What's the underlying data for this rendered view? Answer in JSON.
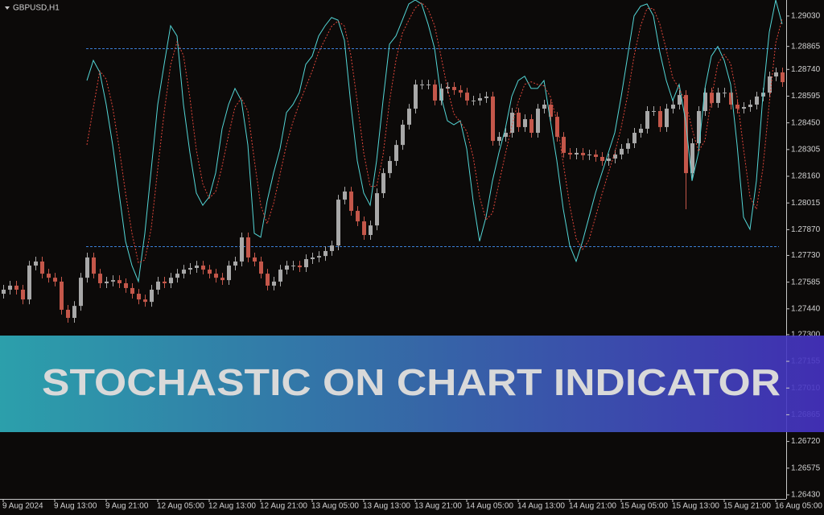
{
  "chart_data": {
    "type": "candlestick",
    "title": "GBPUSD,H1",
    "categories": [
      "9 Aug 2024",
      null,
      null,
      null,
      null,
      null,
      null,
      null,
      "9 Aug 13:00",
      null,
      null,
      null,
      null,
      null,
      null,
      null,
      "9 Aug 21:00",
      null,
      null,
      null,
      null,
      null,
      null,
      null,
      "12 Aug 05:00",
      null,
      null,
      null,
      null,
      null,
      null,
      null,
      "12 Aug 13:00",
      null,
      null,
      null,
      null,
      null,
      null,
      null,
      "12 Aug 21:00",
      null,
      null,
      null,
      null,
      null,
      null,
      null,
      "13 Aug 05:00",
      null,
      null,
      null,
      null,
      null,
      null,
      null,
      "13 Aug 13:00",
      null,
      null,
      null,
      null,
      null,
      null,
      null,
      "13 Aug 21:00",
      null,
      null,
      null,
      null,
      null,
      null,
      null,
      "14 Aug 05:00",
      null,
      null,
      null,
      null,
      null,
      null,
      null,
      "14 Aug 13:00",
      null,
      null,
      null,
      null,
      null,
      null,
      null,
      "14 Aug 21:00",
      null,
      null,
      null,
      null,
      null,
      null,
      null,
      "15 Aug 05:00",
      null,
      null,
      null,
      null,
      null,
      null,
      null,
      "15 Aug 13:00",
      null,
      null,
      null,
      null,
      null,
      null,
      null,
      "15 Aug 21:00",
      null,
      null,
      null,
      null,
      null,
      null,
      null,
      "16 Aug 05:00",
      null
    ],
    "open": [
      1.27522,
      1.27544,
      1.27566,
      1.27544,
      1.27491,
      1.27675,
      1.27697,
      1.27631,
      1.27609,
      1.27588,
      1.27435,
      1.27391,
      1.27456,
      1.27609,
      1.27719,
      1.27631,
      1.27579,
      1.27588,
      1.27596,
      1.27579,
      1.27553,
      1.27522,
      1.27491,
      1.27478,
      1.27544,
      1.27588,
      1.27579,
      1.27609,
      1.27631,
      1.27653,
      1.27662,
      1.27675,
      1.27653,
      1.27631,
      1.27609,
      1.27596,
      1.27675,
      1.27697,
      1.27828,
      1.27719,
      1.27697,
      1.27631,
      1.27566,
      1.27588,
      1.27653,
      1.27675,
      1.27675,
      1.27666,
      1.2771,
      1.27719,
      1.27727,
      1.27754,
      1.27784,
      1.28033,
      1.28077,
      1.27972,
      1.27915,
      1.27841,
      1.27893,
      1.28068,
      1.28177,
      1.28243,
      1.2833,
      1.2844,
      1.28527,
      1.28658,
      1.28658,
      1.28658,
      1.28571,
      1.28636,
      1.28645,
      1.28628,
      1.28614,
      1.28571,
      1.28571,
      1.28584,
      1.28593,
      1.28352,
      1.28374,
      1.28396,
      1.28505,
      1.28427,
      1.2847,
      1.28396,
      1.28527,
      1.28549,
      1.28483,
      1.28374,
      1.28287,
      1.28278,
      1.28287,
      1.28274,
      1.28278,
      1.28265,
      1.28243,
      1.28256,
      1.28278,
      1.28309,
      1.28339,
      1.28396,
      1.28418,
      1.28514,
      1.28514,
      1.28427,
      1.28527,
      1.28549,
      1.28601,
      1.28177,
      1.28339,
      1.28514,
      1.28614,
      1.28558,
      1.28614,
      1.28614,
      1.28549,
      1.28527,
      1.28536,
      1.28549,
      1.28593,
      1.28614,
      1.28702,
      1.28724
    ],
    "high": [
      1.2757,
      1.27592,
      1.27592,
      1.2757,
      1.27701,
      1.27723,
      1.27723,
      1.27657,
      1.27635,
      1.27614,
      1.27461,
      1.27482,
      1.27635,
      1.27745,
      1.27745,
      1.27657,
      1.27614,
      1.27622,
      1.27622,
      1.27605,
      1.27579,
      1.27548,
      1.27517,
      1.2757,
      1.27614,
      1.27614,
      1.27635,
      1.27657,
      1.27679,
      1.27688,
      1.27701,
      1.27701,
      1.27679,
      1.27657,
      1.27635,
      1.27701,
      1.27723,
      1.27854,
      1.27854,
      1.27745,
      1.27723,
      1.27657,
      1.27614,
      1.27679,
      1.27701,
      1.27701,
      1.27701,
      1.27736,
      1.27745,
      1.27753,
      1.2778,
      1.2781,
      1.28059,
      1.28103,
      1.28103,
      1.27998,
      1.27941,
      1.27919,
      1.28094,
      1.28203,
      1.28269,
      1.28356,
      1.28466,
      1.28553,
      1.28684,
      1.28684,
      1.28684,
      1.28684,
      1.28662,
      1.28671,
      1.28671,
      1.28654,
      1.2864,
      1.28597,
      1.2861,
      1.28619,
      1.28619,
      1.284,
      1.28422,
      1.28531,
      1.28531,
      1.28496,
      1.28496,
      1.28553,
      1.28575,
      1.28575,
      1.28509,
      1.284,
      1.28313,
      1.28313,
      1.28313,
      1.28304,
      1.28304,
      1.28291,
      1.28282,
      1.28304,
      1.28335,
      1.28365,
      1.28422,
      1.28444,
      1.2854,
      1.2854,
      1.2854,
      1.28553,
      1.28575,
      1.28627,
      1.28627,
      1.28365,
      1.2854,
      1.2864,
      1.2864,
      1.2864,
      1.2864,
      1.2864,
      1.28575,
      1.28562,
      1.28575,
      1.28619,
      1.2864,
      1.28728,
      1.2875,
      1.2875
    ],
    "low": [
      1.27496,
      1.27518,
      1.27518,
      1.27465,
      1.27465,
      1.27649,
      1.27605,
      1.27583,
      1.27562,
      1.27409,
      1.27365,
      1.27365,
      1.2743,
      1.27583,
      1.27605,
      1.27553,
      1.27553,
      1.27562,
      1.27553,
      1.27527,
      1.27496,
      1.27465,
      1.27452,
      1.27452,
      1.27518,
      1.27553,
      1.27553,
      1.27583,
      1.27605,
      1.27627,
      1.27636,
      1.27627,
      1.27605,
      1.27583,
      1.2757,
      1.2757,
      1.27649,
      1.27671,
      1.27693,
      1.27671,
      1.27605,
      1.2754,
      1.2754,
      1.27562,
      1.27627,
      1.27649,
      1.2764,
      1.2764,
      1.27684,
      1.27693,
      1.27701,
      1.27728,
      1.27758,
      1.28007,
      1.27946,
      1.27889,
      1.27815,
      1.27815,
      1.27867,
      1.28042,
      1.28151,
      1.28217,
      1.28304,
      1.28414,
      1.28501,
      1.28632,
      1.28632,
      1.28545,
      1.28545,
      1.2861,
      1.28602,
      1.28588,
      1.28545,
      1.28545,
      1.28545,
      1.28558,
      1.28326,
      1.28326,
      1.28348,
      1.2837,
      1.28401,
      1.28401,
      1.2837,
      1.2837,
      1.28501,
      1.28457,
      1.28348,
      1.28261,
      1.28252,
      1.28252,
      1.28248,
      1.28248,
      1.28239,
      1.28217,
      1.28217,
      1.2823,
      1.28252,
      1.28283,
      1.28313,
      1.2837,
      1.28392,
      1.28488,
      1.28401,
      1.28401,
      1.28501,
      1.28523,
      1.27981,
      1.28151,
      1.28313,
      1.28488,
      1.28532,
      1.28532,
      1.28588,
      1.28523,
      1.28501,
      1.28501,
      1.2851,
      1.28523,
      1.28567,
      1.28588,
      1.28676,
      1.28645
    ],
    "close": [
      1.27544,
      1.27566,
      1.27544,
      1.27491,
      1.27675,
      1.27697,
      1.27631,
      1.27609,
      1.27588,
      1.27435,
      1.27391,
      1.27456,
      1.27609,
      1.27719,
      1.27631,
      1.27579,
      1.27588,
      1.27596,
      1.27579,
      1.27553,
      1.27522,
      1.27491,
      1.27478,
      1.27544,
      1.27588,
      1.27579,
      1.27609,
      1.27631,
      1.27653,
      1.27662,
      1.27675,
      1.27653,
      1.27631,
      1.27609,
      1.27596,
      1.27675,
      1.27697,
      1.27828,
      1.27719,
      1.27697,
      1.27631,
      1.27566,
      1.27588,
      1.27653,
      1.27675,
      1.27675,
      1.27666,
      1.2771,
      1.27719,
      1.27727,
      1.27754,
      1.27784,
      1.28033,
      1.28077,
      1.27972,
      1.27915,
      1.27841,
      1.27893,
      1.28068,
      1.28177,
      1.28243,
      1.2833,
      1.2844,
      1.28527,
      1.28658,
      1.28658,
      1.28658,
      1.28571,
      1.28636,
      1.28645,
      1.28628,
      1.28614,
      1.28571,
      1.28571,
      1.28584,
      1.28593,
      1.28352,
      1.28374,
      1.28396,
      1.28505,
      1.28427,
      1.2847,
      1.28396,
      1.28527,
      1.28549,
      1.28483,
      1.28374,
      1.28287,
      1.28278,
      1.28287,
      1.28274,
      1.28278,
      1.28265,
      1.28243,
      1.28256,
      1.28278,
      1.28309,
      1.28339,
      1.28396,
      1.28418,
      1.28514,
      1.28514,
      1.28427,
      1.28527,
      1.28549,
      1.28601,
      1.28177,
      1.28339,
      1.28514,
      1.28614,
      1.28558,
      1.28614,
      1.28614,
      1.28549,
      1.28527,
      1.28536,
      1.28549,
      1.28593,
      1.28614,
      1.28702,
      1.28724,
      1.28671
    ],
    "up_color": "#a8a8a8",
    "down_color": "#c4574a",
    "ylim": [
      1.26408,
      1.29117
    ],
    "yticks": [
      {
        "value": 1.2903,
        "label": "1.29030"
      },
      1.28865,
      {
        "value": 1.2874,
        "label": "1.28740"
      },
      1.28595,
      {
        "value": 1.2845,
        "label": "1.28450"
      },
      1.28305,
      {
        "value": 1.2816,
        "label": "1.28160"
      },
      1.28015,
      {
        "value": 1.2787,
        "label": "1.27870"
      },
      {
        "value": 1.2773,
        "label": "1.27730"
      },
      1.27585,
      {
        "value": 1.2744,
        "label": "1.27440"
      },
      {
        "value": 1.273,
        "label": "1.27300"
      },
      1.27155,
      {
        "value": 1.2701,
        "label": "1.27010"
      },
      1.26865,
      {
        "value": 1.2672,
        "label": "1.26720"
      },
      1.26575,
      {
        "value": 1.2643,
        "label": "1.26430"
      }
    ],
    "y2lim": [
      -56.6,
      94.6
    ],
    "y2_levels": [
      20,
      80
    ],
    "level_color": "#3b7fd6",
    "series": [
      {
        "color": "#53d6d6",
        "axis": "y2",
        "dashed": false,
        "values": [
          null,
          null,
          null,
          null,
          null,
          null,
          null,
          null,
          null,
          null,
          null,
          null,
          null,
          70.2,
          76.3,
          72.7,
          62.9,
          50.7,
          36.1,
          21.5,
          14.1,
          9.3,
          23.9,
          43.4,
          62.9,
          75.1,
          86.8,
          83.7,
          62.9,
          48.3,
          36.1,
          32.4,
          34.9,
          42.2,
          55.6,
          62.9,
          67.8,
          64.1,
          50.7,
          23.9,
          22.7,
          33.7,
          42.2,
          49.5,
          60.5,
          62.9,
          66.6,
          75.1,
          77.6,
          83.7,
          86.8,
          89.3,
          88.5,
          82.4,
          62.9,
          45.9,
          36.1,
          32.4,
          45.9,
          64.1,
          81.2,
          83.7,
          88.5,
          93.4,
          94.6,
          93.4,
          87.3,
          80,
          65.4,
          58,
          56.8,
          58,
          49.5,
          33.7,
          21.5,
          28.8,
          39.8,
          48.3,
          55.6,
          65.4,
          70.2,
          71.5,
          67.8,
          67.8,
          70.2,
          58,
          45.9,
          31.2,
          20.2,
          15.4,
          21.5,
          28.8,
          36.1,
          42.2,
          48.3,
          54.4,
          65.4,
          77.6,
          89.8,
          92.7,
          93.4,
          89.8,
          78.8,
          70.2,
          64.1,
          69,
          58,
          39.8,
          48.3,
          67.8,
          77.6,
          80.5,
          76.3,
          69,
          50.7,
          28.8,
          25.1,
          39.8,
          65.4,
          84.9,
          94.6,
          87.3
        ]
      },
      {
        "color": "#e0463a",
        "axis": "y2",
        "dashed": true,
        "values": [
          null,
          null,
          null,
          null,
          null,
          null,
          null,
          null,
          null,
          null,
          null,
          null,
          null,
          50.7,
          62,
          73.1,
          70.6,
          62.1,
          49.9,
          36.1,
          23.9,
          15,
          15.8,
          25.5,
          43.4,
          60.5,
          74.9,
          81.9,
          77.8,
          65,
          49.1,
          38.9,
          34.5,
          36.5,
          44.2,
          53.6,
          62.1,
          64.9,
          60.9,
          46.2,
          32.4,
          26.8,
          32.9,
          41.8,
          50.7,
          57.6,
          63.3,
          68.2,
          73.1,
          78.8,
          82.7,
          86.6,
          88.2,
          86.7,
          77.9,
          63.7,
          48.3,
          38.1,
          38.1,
          47.5,
          63.7,
          76.3,
          84.5,
          88.5,
          92.2,
          93.8,
          91.8,
          86.9,
          77.6,
          67.8,
          60.1,
          57.6,
          54.8,
          47.1,
          34.9,
          28,
          30,
          39,
          47.9,
          56.4,
          63.7,
          69,
          69.8,
          69,
          68.6,
          65.3,
          58,
          45,
          32.4,
          22.3,
          19,
          21.9,
          28.8,
          35.7,
          42.2,
          48.3,
          56,
          65.8,
          77.6,
          86.7,
          92,
          92,
          87.3,
          79.6,
          71,
          67.8,
          63.7,
          55.6,
          48.7,
          52,
          64.6,
          75.3,
          78.1,
          75.3,
          65.3,
          49.5,
          34.9,
          31.2,
          43.4,
          63.4,
          81.6,
          88.9
        ]
      }
    ]
  },
  "banner": "STOCHASTIC ON CHART INDICATOR"
}
